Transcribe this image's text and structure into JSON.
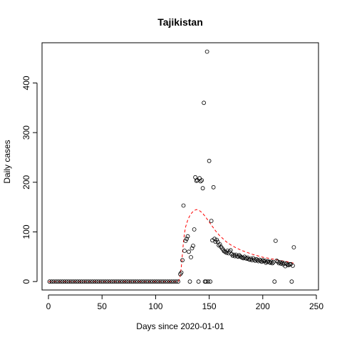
{
  "chart_data": {
    "type": "scatter",
    "title": "Tajikistan",
    "xlabel": "Days since 2020-01-01",
    "ylabel": "Daily cases",
    "xlim": [
      -6,
      252
    ],
    "ylim": [
      -17,
      481
    ],
    "x_ticks": [
      0,
      50,
      100,
      150,
      200,
      250
    ],
    "y_ticks": [
      0,
      100,
      200,
      300,
      400
    ],
    "grid": false,
    "legend": "none",
    "colors": {
      "points": "#000000",
      "fit": "#ff0000"
    },
    "series": [
      {
        "type": "scatter",
        "marker": "open-circle",
        "points": [
          [
            1,
            0
          ],
          [
            3,
            0
          ],
          [
            5,
            0
          ],
          [
            7,
            0
          ],
          [
            9,
            0
          ],
          [
            11,
            0
          ],
          [
            13,
            0
          ],
          [
            15,
            0
          ],
          [
            17,
            0
          ],
          [
            19,
            0
          ],
          [
            21,
            0
          ],
          [
            23,
            0
          ],
          [
            25,
            0
          ],
          [
            27,
            0
          ],
          [
            29,
            0
          ],
          [
            31,
            0
          ],
          [
            33,
            0
          ],
          [
            35,
            0
          ],
          [
            37,
            0
          ],
          [
            39,
            0
          ],
          [
            41,
            0
          ],
          [
            43,
            0
          ],
          [
            45,
            0
          ],
          [
            47,
            0
          ],
          [
            49,
            0
          ],
          [
            51,
            0
          ],
          [
            53,
            0
          ],
          [
            55,
            0
          ],
          [
            57,
            0
          ],
          [
            59,
            0
          ],
          [
            61,
            0
          ],
          [
            63,
            0
          ],
          [
            65,
            0
          ],
          [
            67,
            0
          ],
          [
            69,
            0
          ],
          [
            71,
            0
          ],
          [
            73,
            0
          ],
          [
            75,
            0
          ],
          [
            77,
            0
          ],
          [
            79,
            0
          ],
          [
            81,
            0
          ],
          [
            83,
            0
          ],
          [
            85,
            0
          ],
          [
            87,
            0
          ],
          [
            89,
            0
          ],
          [
            91,
            0
          ],
          [
            93,
            0
          ],
          [
            95,
            0
          ],
          [
            97,
            0
          ],
          [
            99,
            0
          ],
          [
            101,
            0
          ],
          [
            103,
            0
          ],
          [
            105,
            0
          ],
          [
            107,
            0
          ],
          [
            109,
            0
          ],
          [
            111,
            0
          ],
          [
            113,
            0
          ],
          [
            115,
            0
          ],
          [
            117,
            0
          ],
          [
            119,
            0
          ],
          [
            121,
            0
          ],
          [
            123,
            15
          ],
          [
            124,
            18
          ],
          [
            125,
            43
          ],
          [
            126,
            153
          ],
          [
            127,
            62
          ],
          [
            128,
            82
          ],
          [
            129,
            86
          ],
          [
            130,
            91
          ],
          [
            131,
            60
          ],
          [
            132,
            0
          ],
          [
            133,
            49
          ],
          [
            134,
            67
          ],
          [
            135,
            72
          ],
          [
            136,
            105
          ],
          [
            137,
            210
          ],
          [
            138,
            203
          ],
          [
            139,
            204
          ],
          [
            140,
            0
          ],
          [
            141,
            208
          ],
          [
            142,
            202
          ],
          [
            143,
            204
          ],
          [
            144,
            188
          ],
          [
            145,
            360
          ],
          [
            146,
            0
          ],
          [
            147,
            0
          ],
          [
            148,
            463
          ],
          [
            149,
            0
          ],
          [
            150,
            243
          ],
          [
            151,
            0
          ],
          [
            152,
            122
          ],
          [
            153,
            83
          ],
          [
            154,
            190
          ],
          [
            155,
            86
          ],
          [
            156,
            80
          ],
          [
            157,
            84
          ],
          [
            158,
            80
          ],
          [
            159,
            73
          ],
          [
            160,
            75
          ],
          [
            161,
            70
          ],
          [
            162,
            67
          ],
          [
            163,
            64
          ],
          [
            164,
            61
          ],
          [
            165,
            60
          ],
          [
            166,
            58
          ],
          [
            167,
            62
          ],
          [
            168,
            57
          ],
          [
            169,
            60
          ],
          [
            170,
            63
          ],
          [
            171,
            55
          ],
          [
            172,
            52
          ],
          [
            173,
            54
          ],
          [
            174,
            51
          ],
          [
            175,
            54
          ],
          [
            176,
            51
          ],
          [
            177,
            50
          ],
          [
            178,
            53
          ],
          [
            179,
            51
          ],
          [
            180,
            49
          ],
          [
            181,
            48
          ],
          [
            182,
            47
          ],
          [
            183,
            50
          ],
          [
            184,
            47
          ],
          [
            185,
            46
          ],
          [
            186,
            48
          ],
          [
            187,
            45
          ],
          [
            188,
            44
          ],
          [
            189,
            46
          ],
          [
            190,
            43
          ],
          [
            191,
            47
          ],
          [
            192,
            44
          ],
          [
            193,
            42
          ],
          [
            194,
            45
          ],
          [
            195,
            43
          ],
          [
            196,
            41
          ],
          [
            197,
            44
          ],
          [
            198,
            42
          ],
          [
            199,
            40
          ],
          [
            200,
            43
          ],
          [
            201,
            41
          ],
          [
            202,
            42
          ],
          [
            203,
            38
          ],
          [
            204,
            40
          ],
          [
            205,
            41
          ],
          [
            206,
            39
          ],
          [
            207,
            38
          ],
          [
            208,
            40
          ],
          [
            209,
            37
          ],
          [
            210,
            39
          ],
          [
            211,
            0
          ],
          [
            212,
            82
          ],
          [
            213,
            42
          ],
          [
            214,
            40
          ],
          [
            215,
            37
          ],
          [
            216,
            39
          ],
          [
            217,
            36
          ],
          [
            218,
            38
          ],
          [
            219,
            35
          ],
          [
            220,
            37
          ],
          [
            221,
            31
          ],
          [
            222,
            36
          ],
          [
            223,
            34
          ],
          [
            224,
            33
          ],
          [
            225,
            35
          ],
          [
            226,
            35
          ],
          [
            227,
            0
          ],
          [
            228,
            32
          ],
          [
            229,
            69
          ]
        ]
      },
      {
        "type": "line",
        "style": "dashed",
        "points": [
          [
            0,
            0
          ],
          [
            121,
            0
          ],
          [
            122,
            3
          ],
          [
            123,
            12
          ],
          [
            124,
            30
          ],
          [
            125,
            55
          ],
          [
            126,
            80
          ],
          [
            127,
            98
          ],
          [
            128,
            110
          ],
          [
            130,
            124
          ],
          [
            132,
            133
          ],
          [
            134,
            139
          ],
          [
            136,
            143
          ],
          [
            138,
            145
          ],
          [
            140,
            144
          ],
          [
            142,
            141
          ],
          [
            144,
            137
          ],
          [
            146,
            132
          ],
          [
            148,
            126
          ],
          [
            150,
            120
          ],
          [
            152,
            114
          ],
          [
            154,
            108
          ],
          [
            156,
            102
          ],
          [
            158,
            97
          ],
          [
            160,
            92
          ],
          [
            163,
            86
          ],
          [
            166,
            80
          ],
          [
            170,
            74
          ],
          [
            175,
            68
          ],
          [
            180,
            63
          ],
          [
            185,
            59
          ],
          [
            190,
            55
          ],
          [
            195,
            52
          ],
          [
            200,
            49
          ],
          [
            205,
            47
          ],
          [
            210,
            45
          ],
          [
            215,
            43
          ],
          [
            220,
            41
          ],
          [
            225,
            39
          ],
          [
            229,
            37
          ]
        ]
      }
    ]
  }
}
